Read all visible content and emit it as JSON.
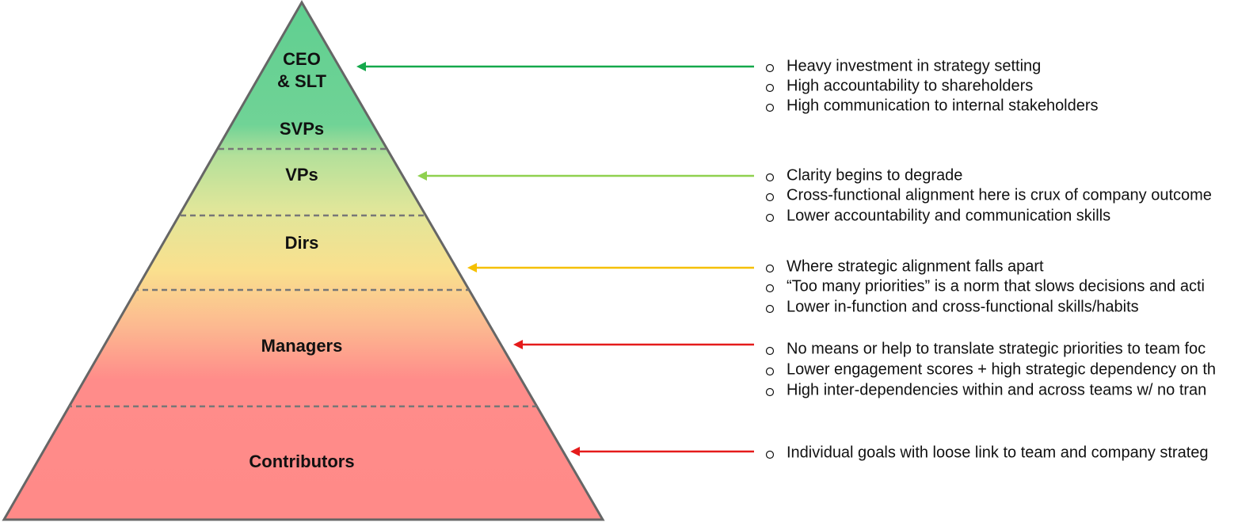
{
  "levels": [
    {
      "lines": [
        "CEO",
        "& SLT"
      ]
    },
    {
      "lines": [
        "SVPs"
      ]
    },
    {
      "lines": [
        "VPs"
      ]
    },
    {
      "lines": [
        "Dirs"
      ]
    },
    {
      "lines": [
        "Managers"
      ]
    },
    {
      "lines": [
        "Contributors"
      ]
    }
  ],
  "groups": [
    {
      "color": "#14a84b",
      "bullets": [
        "Heavy investment in strategy setting",
        "High accountability to shareholders",
        "High communication to internal stakeholders"
      ]
    },
    {
      "color": "#8fd14f",
      "bullets": [
        "Clarity begins to degrade",
        "Cross-functional alignment here is crux of company outcome",
        "Lower accountability and communication skills"
      ]
    },
    {
      "color": "#f5c000",
      "bullets": [
        "Where strategic alignment falls apart",
        "“Too many priorities” is a norm that slows decisions and acti",
        "Lower in-function and cross-functional skills/habits"
      ]
    },
    {
      "color": "#e51b1b",
      "bullets": [
        "No means or help to translate strategic priorities to team foc",
        "Lower engagement scores + high strategic dependency on th",
        "High inter-dependencies within and across teams w/ no tran"
      ]
    },
    {
      "color": "#e51b1b",
      "bullets": [
        "Individual goals with loose link to team and company strateg"
      ]
    }
  ]
}
